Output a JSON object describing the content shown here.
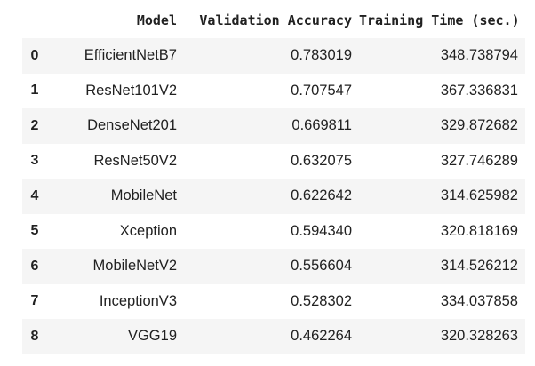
{
  "table": {
    "columns": [
      "",
      "Model",
      "Validation Accuracy",
      "Training Time (sec.)"
    ],
    "rows": [
      {
        "index": "0",
        "model": "EfficientNetB7",
        "accuracy": "0.783019",
        "time": "348.738794"
      },
      {
        "index": "1",
        "model": "ResNet101V2",
        "accuracy": "0.707547",
        "time": "367.336831"
      },
      {
        "index": "2",
        "model": "DenseNet201",
        "accuracy": "0.669811",
        "time": "329.872682"
      },
      {
        "index": "3",
        "model": "ResNet50V2",
        "accuracy": "0.632075",
        "time": "327.746289"
      },
      {
        "index": "4",
        "model": "MobileNet",
        "accuracy": "0.622642",
        "time": "314.625982"
      },
      {
        "index": "5",
        "model": "Xception",
        "accuracy": "0.594340",
        "time": "320.818169"
      },
      {
        "index": "6",
        "model": "MobileNetV2",
        "accuracy": "0.556604",
        "time": "314.526212"
      },
      {
        "index": "7",
        "model": "InceptionV3",
        "accuracy": "0.528302",
        "time": "334.037858"
      },
      {
        "index": "8",
        "model": "VGG19",
        "accuracy": "0.462264",
        "time": "320.328263"
      }
    ]
  }
}
